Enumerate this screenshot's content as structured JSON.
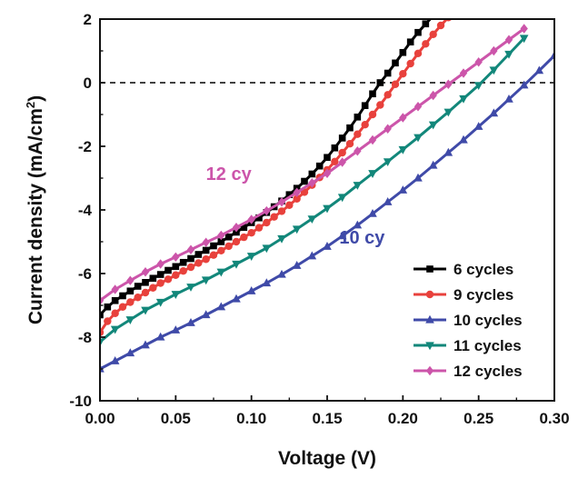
{
  "chart_data": {
    "type": "line",
    "xlabel": "Voltage (V)",
    "ylabel_main": "Current density (mA/cm",
    "ylabel_sup": "2",
    "ylabel_end": ")",
    "xlim": [
      0.0,
      0.3
    ],
    "ylim": [
      -10,
      2
    ],
    "x_ticks": [
      "0.00",
      "0.05",
      "0.10",
      "0.15",
      "0.20",
      "0.25",
      "0.30"
    ],
    "y_ticks": [
      "-10",
      "-8",
      "-6",
      "-4",
      "-2",
      "0",
      "2"
    ],
    "reference_line": {
      "y": 0,
      "style": "dashed",
      "color": "#000000"
    },
    "legend_position": "bottom-right",
    "grid": false,
    "annotations": [
      {
        "text": "12 cy",
        "color": "#cc55aa",
        "x": 0.07,
        "y": -3.05
      },
      {
        "text": "10 cy",
        "color": "#3f4aa8",
        "x": 0.158,
        "y": -5.05
      }
    ],
    "series": [
      {
        "name": "6 cycles",
        "color": "#000000",
        "marker": "square",
        "x": [
          0.0,
          0.005,
          0.01,
          0.015,
          0.02,
          0.025,
          0.03,
          0.035,
          0.04,
          0.045,
          0.05,
          0.055,
          0.06,
          0.065,
          0.07,
          0.075,
          0.08,
          0.085,
          0.09,
          0.095,
          0.1,
          0.105,
          0.11,
          0.115,
          0.12,
          0.125,
          0.13,
          0.135,
          0.14,
          0.145,
          0.15,
          0.155,
          0.16,
          0.165,
          0.17,
          0.175,
          0.18,
          0.185,
          0.19,
          0.195,
          0.2,
          0.205,
          0.21,
          0.215,
          0.22,
          0.225
        ],
        "y": [
          -7.3,
          -7.05,
          -6.85,
          -6.7,
          -6.55,
          -6.4,
          -6.28,
          -6.15,
          -6.03,
          -5.9,
          -5.78,
          -5.65,
          -5.53,
          -5.4,
          -5.27,
          -5.13,
          -5.0,
          -4.85,
          -4.7,
          -4.55,
          -4.4,
          -4.25,
          -4.08,
          -3.9,
          -3.72,
          -3.52,
          -3.32,
          -3.1,
          -2.87,
          -2.62,
          -2.35,
          -2.05,
          -1.74,
          -1.42,
          -1.08,
          -0.72,
          -0.35,
          0.0,
          0.3,
          0.62,
          0.95,
          1.28,
          1.58,
          1.85,
          2.1,
          2.3
        ]
      },
      {
        "name": "9 cycles",
        "color": "#e8413c",
        "marker": "circle",
        "x": [
          0.0,
          0.005,
          0.01,
          0.015,
          0.02,
          0.025,
          0.03,
          0.035,
          0.04,
          0.045,
          0.05,
          0.055,
          0.06,
          0.065,
          0.07,
          0.075,
          0.08,
          0.085,
          0.09,
          0.095,
          0.1,
          0.105,
          0.11,
          0.115,
          0.12,
          0.125,
          0.13,
          0.135,
          0.14,
          0.145,
          0.15,
          0.155,
          0.16,
          0.165,
          0.17,
          0.175,
          0.18,
          0.185,
          0.19,
          0.195,
          0.2,
          0.205,
          0.21,
          0.215,
          0.22,
          0.225,
          0.23
        ],
        "y": [
          -7.85,
          -7.5,
          -7.25,
          -7.05,
          -6.9,
          -6.75,
          -6.6,
          -6.45,
          -6.3,
          -6.18,
          -6.05,
          -5.92,
          -5.8,
          -5.67,
          -5.55,
          -5.42,
          -5.28,
          -5.14,
          -5.0,
          -4.86,
          -4.72,
          -4.56,
          -4.4,
          -4.22,
          -4.04,
          -3.85,
          -3.65,
          -3.44,
          -3.22,
          -2.98,
          -2.74,
          -2.48,
          -2.2,
          -1.92,
          -1.62,
          -1.32,
          -1.0,
          -0.7,
          -0.38,
          -0.05,
          0.28,
          0.6,
          0.92,
          1.22,
          1.52,
          1.8,
          2.05
        ]
      },
      {
        "name": "10 cycles",
        "color": "#3f4aa8",
        "marker": "triangle-up",
        "x": [
          0.0,
          0.01,
          0.02,
          0.03,
          0.04,
          0.05,
          0.06,
          0.07,
          0.08,
          0.09,
          0.1,
          0.11,
          0.12,
          0.13,
          0.14,
          0.15,
          0.16,
          0.17,
          0.18,
          0.19,
          0.2,
          0.21,
          0.22,
          0.23,
          0.24,
          0.25,
          0.26,
          0.27,
          0.28,
          0.29,
          0.3
        ],
        "y": [
          -9.0,
          -8.75,
          -8.5,
          -8.25,
          -8.0,
          -7.78,
          -7.55,
          -7.3,
          -7.05,
          -6.8,
          -6.55,
          -6.3,
          -6.03,
          -5.75,
          -5.45,
          -5.15,
          -4.82,
          -4.48,
          -4.12,
          -3.75,
          -3.38,
          -3.0,
          -2.6,
          -2.2,
          -1.8,
          -1.38,
          -0.96,
          -0.52,
          -0.08,
          0.38,
          0.85
        ]
      },
      {
        "name": "11 cycles",
        "color": "#12877a",
        "marker": "triangle-down",
        "x": [
          0.0,
          0.01,
          0.02,
          0.03,
          0.04,
          0.05,
          0.06,
          0.07,
          0.08,
          0.09,
          0.1,
          0.11,
          0.12,
          0.13,
          0.14,
          0.15,
          0.16,
          0.17,
          0.18,
          0.19,
          0.2,
          0.21,
          0.22,
          0.23,
          0.24,
          0.25,
          0.26,
          0.27,
          0.28
        ],
        "y": [
          -8.15,
          -7.75,
          -7.45,
          -7.15,
          -6.9,
          -6.65,
          -6.42,
          -6.2,
          -5.95,
          -5.7,
          -5.45,
          -5.2,
          -4.9,
          -4.6,
          -4.28,
          -3.95,
          -3.6,
          -3.22,
          -2.85,
          -2.48,
          -2.1,
          -1.72,
          -1.32,
          -0.92,
          -0.5,
          -0.08,
          0.4,
          0.9,
          1.4
        ]
      },
      {
        "name": "12 cycles",
        "color": "#cc55aa",
        "marker": "diamond",
        "x": [
          0.0,
          0.01,
          0.02,
          0.03,
          0.04,
          0.05,
          0.06,
          0.07,
          0.08,
          0.09,
          0.1,
          0.11,
          0.12,
          0.13,
          0.14,
          0.15,
          0.16,
          0.17,
          0.18,
          0.19,
          0.2,
          0.21,
          0.22,
          0.23,
          0.24,
          0.25,
          0.26,
          0.27,
          0.28
        ],
        "y": [
          -6.85,
          -6.5,
          -6.22,
          -5.95,
          -5.7,
          -5.48,
          -5.25,
          -5.02,
          -4.8,
          -4.55,
          -4.3,
          -4.03,
          -3.75,
          -3.45,
          -3.15,
          -2.85,
          -2.5,
          -2.15,
          -1.8,
          -1.45,
          -1.1,
          -0.75,
          -0.4,
          -0.05,
          0.3,
          0.65,
          1.0,
          1.35,
          1.7
        ]
      }
    ]
  }
}
